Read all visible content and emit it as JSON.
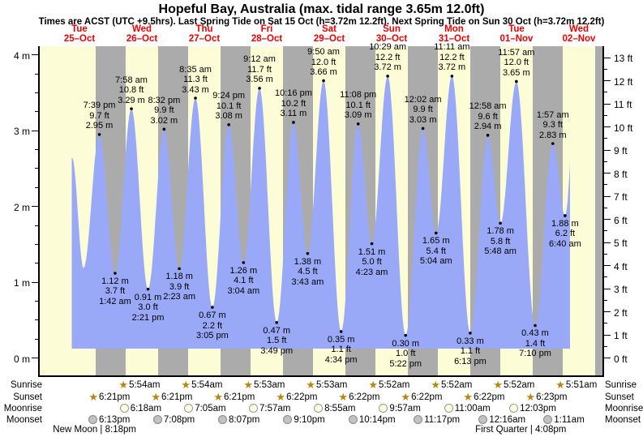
{
  "title": "Hopeful Bay, Australia (max. tidal range 3.65m 12.0ft)",
  "subtitle": "Times are ACST (UTC +9.5hrs). Last Spring Tide on Sat 15 Oct (h=3.72m 12.2ft). Next Spring Tide on Sun 30 Oct (h=3.72m 12.2ft)",
  "days": [
    {
      "weekday": "Tue",
      "date": "25–Oct"
    },
    {
      "weekday": "Wed",
      "date": "26–Oct"
    },
    {
      "weekday": "Thu",
      "date": "27–Oct"
    },
    {
      "weekday": "Fri",
      "date": "28–Oct"
    },
    {
      "weekday": "Sat",
      "date": "29–Oct"
    },
    {
      "weekday": "Sun",
      "date": "30–Oct"
    },
    {
      "weekday": "Mon",
      "date": "31–Oct"
    },
    {
      "weekday": "Tue",
      "date": "01–Nov"
    },
    {
      "weekday": "Wed",
      "date": "02–Nov"
    }
  ],
  "colors": {
    "day_band": "#FCFCD6",
    "night_band": "#ABABAB",
    "water": "#99A9F7",
    "label_red": "#EE0000",
    "star": "#B8860B"
  },
  "chart_data": {
    "type": "area",
    "title": "Tide height curve",
    "left_axis": {
      "unit": "m",
      "tick_labels": [
        "0 m",
        "1 m",
        "2 m",
        "3 m",
        "4 m"
      ],
      "range_m": [
        -0.23,
        4.12
      ],
      "minor_step_m": 0.25
    },
    "right_axis": {
      "unit": "ft",
      "tick_labels": [
        "0 ft",
        "1 ft",
        "2 ft",
        "3 ft",
        "4 ft",
        "5 ft",
        "6 ft",
        "7 ft",
        "8 ft",
        "9 ft",
        "10 ft",
        "11 ft",
        "12 ft",
        "13 ft"
      ],
      "minor_step_ft": 0.5
    },
    "extremes": [
      {
        "kind": "high",
        "day": 0,
        "hour": 19.65,
        "m": 2.95,
        "time": "7:39 pm",
        "ft_label": "9.7 ft",
        "m_label": "2.95 m"
      },
      {
        "kind": "low",
        "day": 1,
        "hour": 1.7,
        "m": 1.12,
        "time": "1:42 am",
        "ft_label": "3.7 ft",
        "m_label": "1.12 m"
      },
      {
        "kind": "high",
        "day": 1,
        "hour": 7.967,
        "m": 3.29,
        "time": "7:58 am",
        "ft_label": "10.8 ft",
        "m_label": "3.29 m"
      },
      {
        "kind": "low",
        "day": 1,
        "hour": 14.35,
        "m": 0.91,
        "time": "2:21 pm",
        "ft_label": "3.0 ft",
        "m_label": "0.91 m"
      },
      {
        "kind": "high",
        "day": 1,
        "hour": 20.533,
        "m": 3.02,
        "time": "8:32 pm",
        "ft_label": "9.9 ft",
        "m_label": "3.02 m"
      },
      {
        "kind": "low",
        "day": 2,
        "hour": 2.383,
        "m": 1.18,
        "time": "2:23 am",
        "ft_label": "3.9 ft",
        "m_label": "1.18 m"
      },
      {
        "kind": "high",
        "day": 2,
        "hour": 8.583,
        "m": 3.43,
        "time": "8:35 am",
        "ft_label": "11.3 ft",
        "m_label": "3.43 m"
      },
      {
        "kind": "low",
        "day": 2,
        "hour": 15.083,
        "m": 0.67,
        "time": "3:05 pm",
        "ft_label": "2.2 ft",
        "m_label": "0.67 m"
      },
      {
        "kind": "high",
        "day": 2,
        "hour": 21.4,
        "m": 3.08,
        "time": "9:24 pm",
        "ft_label": "10.1 ft",
        "m_label": "3.08 m"
      },
      {
        "kind": "low",
        "day": 3,
        "hour": 3.067,
        "m": 1.26,
        "time": "3:04 am",
        "ft_label": "4.1 ft",
        "m_label": "1.26 m"
      },
      {
        "kind": "high",
        "day": 3,
        "hour": 9.2,
        "m": 3.56,
        "time": "9:12 am",
        "ft_label": "11.7 ft",
        "m_label": "3.56 m"
      },
      {
        "kind": "low",
        "day": 3,
        "hour": 15.817,
        "m": 0.47,
        "time": "3:49 pm",
        "ft_label": "1.5 ft",
        "m_label": "0.47 m"
      },
      {
        "kind": "high",
        "day": 3,
        "hour": 22.267,
        "m": 3.11,
        "time": "10:16 pm",
        "ft_label": "10.2 ft",
        "m_label": "3.11 m"
      },
      {
        "kind": "low",
        "day": 4,
        "hour": 3.717,
        "m": 1.38,
        "time": "3:43 am",
        "ft_label": "4.5 ft",
        "m_label": "1.38 m"
      },
      {
        "kind": "high",
        "day": 4,
        "hour": 9.833,
        "m": 3.66,
        "time": "9:50 am",
        "ft_label": "12.0 ft",
        "m_label": "3.66 m"
      },
      {
        "kind": "low",
        "day": 4,
        "hour": 16.567,
        "m": 0.35,
        "time": "4:34 pm",
        "ft_label": "1.1 ft",
        "m_label": "0.35 m"
      },
      {
        "kind": "high",
        "day": 4,
        "hour": 23.133,
        "m": 3.09,
        "time": "11:08 pm",
        "ft_label": "10.1 ft",
        "m_label": "3.09 m"
      },
      {
        "kind": "low",
        "day": 5,
        "hour": 4.383,
        "m": 1.51,
        "time": "4:23 am",
        "ft_label": "5.0 ft",
        "m_label": "1.51 m"
      },
      {
        "kind": "high",
        "day": 5,
        "hour": 10.483,
        "m": 3.72,
        "time": "10:29 am",
        "ft_label": "12.2 ft",
        "m_label": "3.72 m"
      },
      {
        "kind": "low",
        "day": 5,
        "hour": 17.367,
        "m": 0.3,
        "time": "5:22 pm",
        "ft_label": "1.0 ft",
        "m_label": "0.30 m"
      },
      {
        "kind": "high",
        "day": 6,
        "hour": 0.033,
        "m": 3.03,
        "time": "12:02 am",
        "ft_label": "9.9 ft",
        "m_label": "3.03 m"
      },
      {
        "kind": "low",
        "day": 6,
        "hour": 5.067,
        "m": 1.65,
        "time": "5:04 am",
        "ft_label": "5.4 ft",
        "m_label": "1.65 m"
      },
      {
        "kind": "high",
        "day": 6,
        "hour": 11.183,
        "m": 3.72,
        "time": "11:11 am",
        "ft_label": "12.2 ft",
        "m_label": "3.72 m"
      },
      {
        "kind": "low",
        "day": 6,
        "hour": 18.217,
        "m": 0.33,
        "time": "6:13 pm",
        "ft_label": "1.1 ft",
        "m_label": "0.33 m"
      },
      {
        "kind": "high",
        "day": 7,
        "hour": 0.967,
        "m": 2.94,
        "time": "12:58 am",
        "ft_label": "9.6 ft",
        "m_label": "2.94 m"
      },
      {
        "kind": "low",
        "day": 7,
        "hour": 5.8,
        "m": 1.78,
        "time": "5:48 am",
        "ft_label": "5.8 ft",
        "m_label": "1.78 m"
      },
      {
        "kind": "high",
        "day": 7,
        "hour": 11.95,
        "m": 3.65,
        "time": "11:57 am",
        "ft_label": "12.0 ft",
        "m_label": "3.65 m"
      },
      {
        "kind": "low",
        "day": 7,
        "hour": 19.167,
        "m": 0.43,
        "time": "7:10 pm",
        "ft_label": "1.4 ft",
        "m_label": "0.43 m"
      },
      {
        "kind": "high",
        "day": 8,
        "hour": 1.95,
        "m": 2.83,
        "time": "1:57 am",
        "ft_label": "9.3 ft",
        "m_label": "2.83 m"
      },
      {
        "kind": "low",
        "day": 8,
        "hour": 6.667,
        "m": 1.88,
        "time": "6:40 am",
        "ft_label": "6.2 ft",
        "m_label": "1.88 m"
      }
    ],
    "unlabeled_curve_points": [
      {
        "kind": "high",
        "day": 0,
        "hour": 9.2,
        "m": 2.64
      },
      {
        "kind": "low",
        "day": 0,
        "hour": 13.56,
        "m": 1.19
      }
    ],
    "curve_end": {
      "phantom_day": 8,
      "phantom_hour": 11.0,
      "phantom_m": 3.55,
      "cut_day": 8,
      "cut_hour": 8.6
    }
  },
  "almanac": {
    "row_labels": [
      "Sunrise",
      "Sunset",
      "Moonrise",
      "Moonset"
    ],
    "sunrise": [
      {
        "day": 1,
        "hour": 5.9,
        "time": "5:54am"
      },
      {
        "day": 2,
        "hour": 5.9,
        "time": "5:54am"
      },
      {
        "day": 3,
        "hour": 5.883,
        "time": "5:53am"
      },
      {
        "day": 4,
        "hour": 5.883,
        "time": "5:53am"
      },
      {
        "day": 5,
        "hour": 5.867,
        "time": "5:52am"
      },
      {
        "day": 6,
        "hour": 5.867,
        "time": "5:52am"
      },
      {
        "day": 7,
        "hour": 5.867,
        "time": "5:52am"
      },
      {
        "day": 8,
        "hour": 5.85,
        "time": "5:51am"
      }
    ],
    "sunset": [
      {
        "day": 0,
        "hour": 18.35,
        "time": "6:21pm"
      },
      {
        "day": 1,
        "hour": 18.35,
        "time": "6:21pm"
      },
      {
        "day": 2,
        "hour": 18.35,
        "time": "6:21pm"
      },
      {
        "day": 3,
        "hour": 18.367,
        "time": "6:22pm"
      },
      {
        "day": 4,
        "hour": 18.367,
        "time": "6:22pm"
      },
      {
        "day": 5,
        "hour": 18.367,
        "time": "6:22pm"
      },
      {
        "day": 6,
        "hour": 18.367,
        "time": "6:22pm"
      },
      {
        "day": 7,
        "hour": 18.383,
        "time": "6:23pm"
      }
    ],
    "moonrise": [
      {
        "day": 1,
        "hour": 6.3,
        "time": "6:18am"
      },
      {
        "day": 2,
        "hour": 7.083,
        "time": "7:05am"
      },
      {
        "day": 3,
        "hour": 7.95,
        "time": "7:57am"
      },
      {
        "day": 4,
        "hour": 8.917,
        "time": "8:55am"
      },
      {
        "day": 5,
        "hour": 9.95,
        "time": "9:57am"
      },
      {
        "day": 6,
        "hour": 11.0,
        "time": "11:00am"
      },
      {
        "day": 7,
        "hour": 12.05,
        "time": "12:03pm"
      }
    ],
    "moonset": [
      {
        "day": 0,
        "hour": 18.217,
        "time": "6:13pm"
      },
      {
        "day": 1,
        "hour": 19.133,
        "time": "7:08pm"
      },
      {
        "day": 2,
        "hour": 20.117,
        "time": "8:07pm"
      },
      {
        "day": 3,
        "hour": 21.167,
        "time": "9:10pm"
      },
      {
        "day": 4,
        "hour": 22.233,
        "time": "10:14pm"
      },
      {
        "day": 5,
        "hour": 23.283,
        "time": "11:17pm"
      },
      {
        "day": 7,
        "hour": 0.267,
        "time": "12:16am"
      },
      {
        "day": 8,
        "hour": 1.183,
        "time": "1:11am"
      }
    ],
    "phases": [
      {
        "label": "New Moon",
        "time": "8:18pm",
        "day": 0,
        "hour": 20.3
      },
      {
        "label": "First Quarter",
        "time": "4:08pm",
        "day": 7,
        "hour": 16.13
      }
    ]
  }
}
